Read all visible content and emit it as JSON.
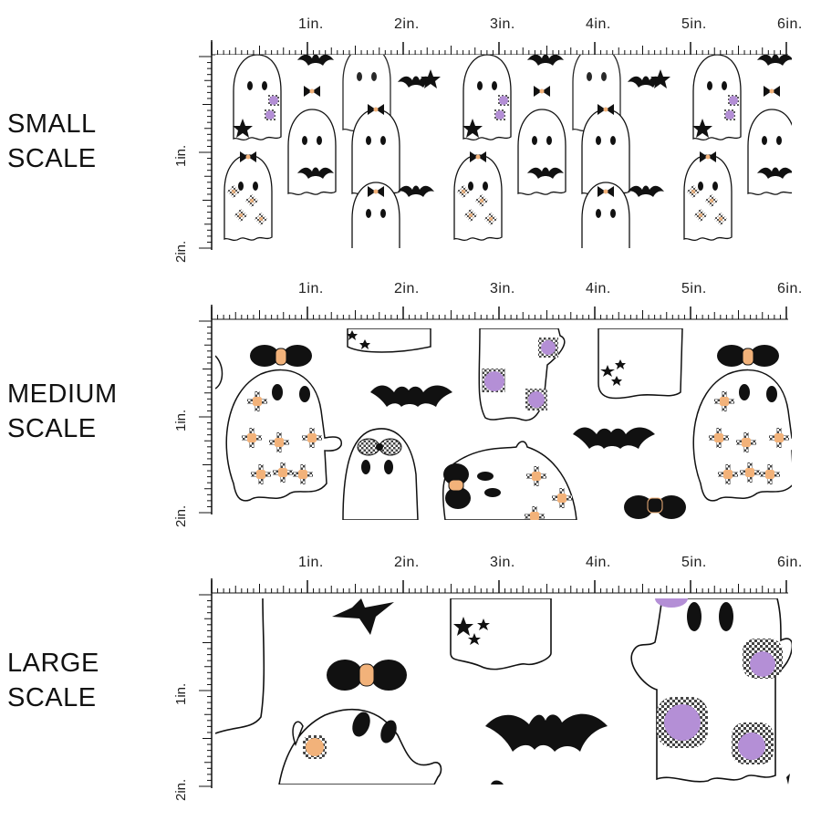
{
  "panels": [
    {
      "id": "small",
      "label_line1": "SMALL",
      "label_line2": "SCALE"
    },
    {
      "id": "medium",
      "label_line1": "MEDIUM",
      "label_line2": "SCALE"
    },
    {
      "id": "large",
      "label_line1": "LARGE",
      "label_line2": "SCALE"
    }
  ],
  "ruler": {
    "horizontal_labels": [
      "1in.",
      "2in.",
      "3in.",
      "4in.",
      "5in.",
      "6in."
    ],
    "vertical_labels": [
      "1in.",
      "2in."
    ]
  },
  "colors": {
    "ghost_fill": "#ffffff",
    "outline": "#111111",
    "bow": "#111111",
    "bow_knot": "#f2b27a",
    "purple": "#b48fd6",
    "orange_flower": "#f2b27a",
    "gingham": "#555555"
  },
  "icons": [
    "ghost-icon",
    "bat-icon",
    "bow-icon",
    "star-icon",
    "flower-icon"
  ]
}
